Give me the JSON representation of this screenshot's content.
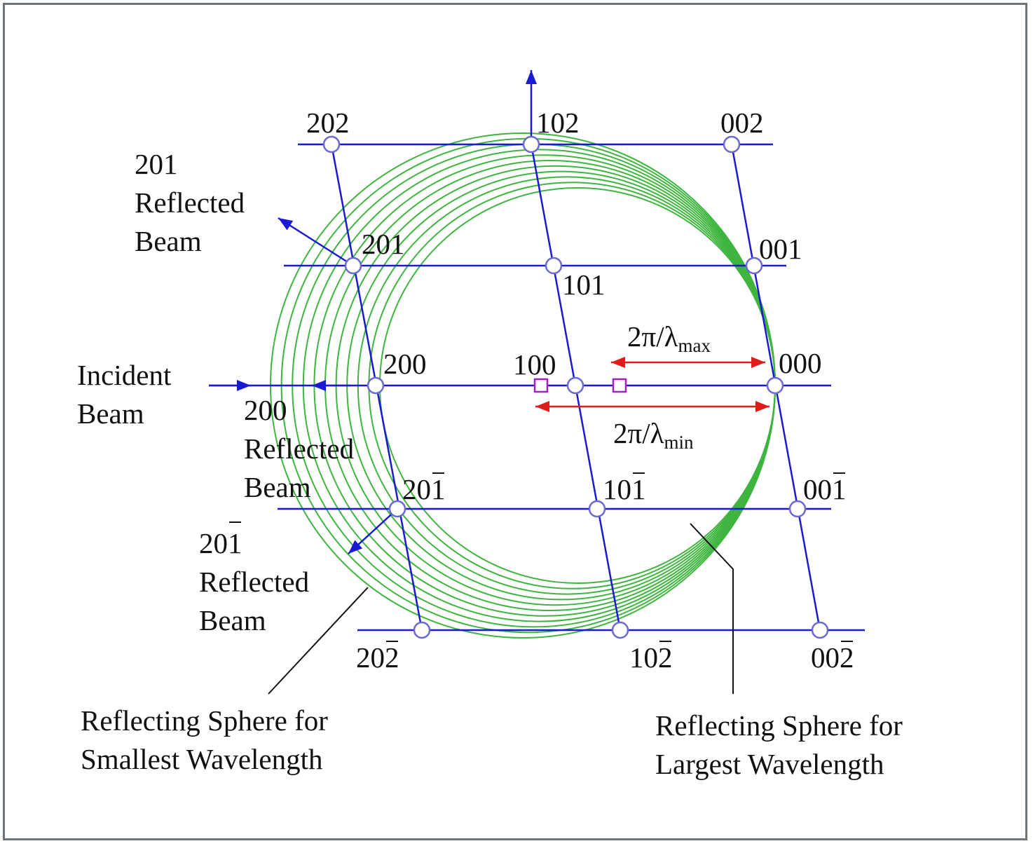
{
  "colors": {
    "lattice": "#1a1ad4",
    "point_fill": "#ffffff",
    "point_stroke": "#6a6ad0",
    "sphere": "#3fb53f",
    "arrow_red": "#e11a1a",
    "marker": "#a020c8",
    "callout": "#111111",
    "frame": "#6e757a"
  },
  "point_labels": {
    "p202": "202",
    "p102": "102",
    "p002": "002",
    "p201": "201",
    "p101": "101",
    "p001": "001",
    "p200": "200",
    "p100": "100",
    "p000": "000",
    "p20m1": {
      "pre": "20",
      "bar": "1"
    },
    "p10m1": {
      "pre": "10",
      "bar": "1"
    },
    "p00m1": {
      "pre": "00",
      "bar": "1"
    },
    "p20m2": {
      "pre": "20",
      "bar": "2"
    },
    "p10m2": {
      "pre": "10",
      "bar": "2"
    },
    "p00m2": {
      "pre": "00",
      "bar": "2"
    }
  },
  "annotations": {
    "refl_201": [
      "201",
      "Reflected",
      "Beam"
    ],
    "incident": [
      "Incident",
      "Beam"
    ],
    "refl_200": [
      "200",
      "Reflected",
      "Beam"
    ],
    "refl_20m1": {
      "head_pre": "20",
      "head_bar": "1",
      "lines": [
        "Reflected",
        "Beam"
      ]
    },
    "sphere_small": [
      "Reflecting Sphere for",
      "Smallest Wavelength"
    ],
    "sphere_large": [
      "Reflecting Sphere for",
      "Largest Wavelength"
    ],
    "lambda_max": {
      "base": "2π/λ",
      "sub": "max"
    },
    "lambda_min": {
      "base": "2π/λ",
      "sub": "min"
    }
  },
  "icons": [
    "arrow-head-icon",
    "lattice-point-icon",
    "square-marker-icon"
  ]
}
